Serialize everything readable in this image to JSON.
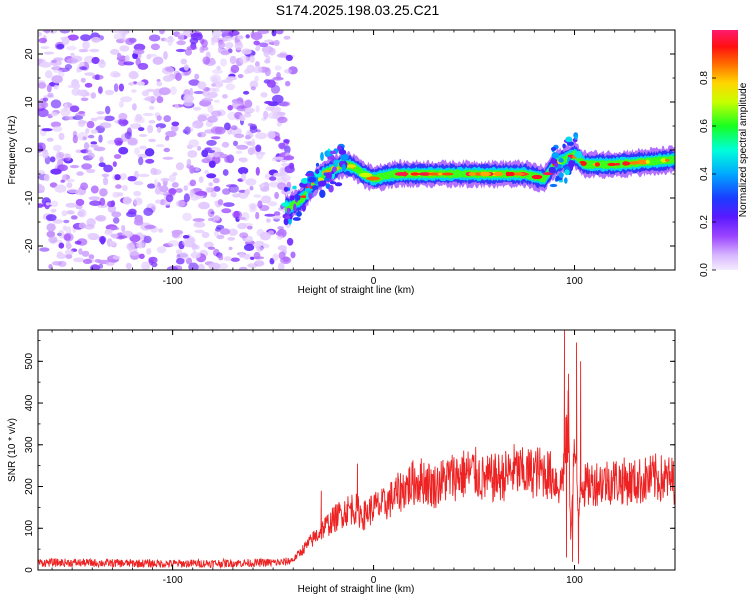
{
  "title": "S174.2025.198.03.25.C21",
  "colors": {
    "snr_line": "#ee2222",
    "frame": "#000000"
  },
  "chart_data": [
    {
      "type": "heatmap",
      "xlabel": "Height of straight line (km)",
      "ylabel": "Frequency (Hz)",
      "colorbar_label": "Normalized spectral amplitude",
      "colormap": "rainbow (white/lavender at 0, violet, blue, cyan, green, yellow, orange, red, pink at 1)",
      "xlim": [
        -167,
        150
      ],
      "ylim": [
        -25,
        25
      ],
      "clim": [
        0,
        1
      ],
      "xticks": [
        "-100",
        "0",
        "100"
      ],
      "yticks": [
        "-20",
        "-10",
        "0",
        "10",
        "20"
      ],
      "cbar_ticks": [
        "0.0",
        "0.2",
        "0.4",
        "0.6",
        "0.8"
      ],
      "noise_region_x": [
        -167,
        -40
      ],
      "ridge": [
        {
          "x": -42,
          "y": -12
        },
        {
          "x": -35,
          "y": -10
        },
        {
          "x": -30,
          "y": -7
        },
        {
          "x": -25,
          "y": -5
        },
        {
          "x": -20,
          "y": -4
        },
        {
          "x": -15,
          "y": -3
        },
        {
          "x": -10,
          "y": -3.5
        },
        {
          "x": -5,
          "y": -5
        },
        {
          "x": 0,
          "y": -6
        },
        {
          "x": 10,
          "y": -5
        },
        {
          "x": 20,
          "y": -5
        },
        {
          "x": 40,
          "y": -5
        },
        {
          "x": 60,
          "y": -5
        },
        {
          "x": 75,
          "y": -5
        },
        {
          "x": 85,
          "y": -6
        },
        {
          "x": 90,
          "y": -3
        },
        {
          "x": 95,
          "y": -2
        },
        {
          "x": 100,
          "y": -1
        },
        {
          "x": 105,
          "y": -3
        },
        {
          "x": 120,
          "y": -3
        },
        {
          "x": 135,
          "y": -2.5
        },
        {
          "x": 150,
          "y": -2
        }
      ],
      "ridge_peak_amplitude": 1.0
    },
    {
      "type": "line",
      "xlabel": "Height of straight line (km)",
      "ylabel": "SNR (10 * v/v)",
      "xlim": [
        -167,
        150
      ],
      "ylim": [
        0,
        575
      ],
      "xticks": [
        "-100",
        "0",
        "100"
      ],
      "yticks": [
        "0",
        "100",
        "200",
        "300",
        "400",
        "500"
      ],
      "series": [
        {
          "x": [
            -167,
            -140,
            -120,
            -100,
            -80,
            -60,
            -45,
            -40,
            -35,
            -30,
            -25,
            -20,
            -15,
            -10,
            -5,
            0,
            5,
            10,
            15,
            20,
            25,
            30,
            35,
            40,
            45,
            50,
            55,
            60,
            65,
            70,
            75,
            80,
            85,
            90,
            93,
            95,
            97,
            98,
            100,
            102,
            103,
            105,
            110,
            120,
            130,
            140,
            150
          ],
          "y": [
            18,
            17,
            16,
            15,
            16,
            17,
            18,
            25,
            50,
            75,
            100,
            120,
            140,
            150,
            130,
            150,
            155,
            175,
            195,
            210,
            215,
            200,
            215,
            225,
            230,
            235,
            215,
            220,
            225,
            240,
            230,
            235,
            235,
            220,
            200,
            260,
            350,
            80,
            300,
            120,
            230,
            200,
            210,
            215,
            210,
            220,
            215
          ],
          "noise_amplitude": 60,
          "spikes": [
            {
              "x": 95,
              "y": 575
            },
            {
              "x": 96,
              "y": 30
            },
            {
              "x": 97,
              "y": 470
            },
            {
              "x": 99,
              "y": 20
            },
            {
              "x": 101,
              "y": 545
            },
            {
              "x": 102,
              "y": 15
            },
            {
              "x": 103,
              "y": 500
            },
            {
              "x": -8,
              "y": 255
            },
            {
              "x": -26,
              "y": 190
            }
          ]
        }
      ]
    }
  ]
}
